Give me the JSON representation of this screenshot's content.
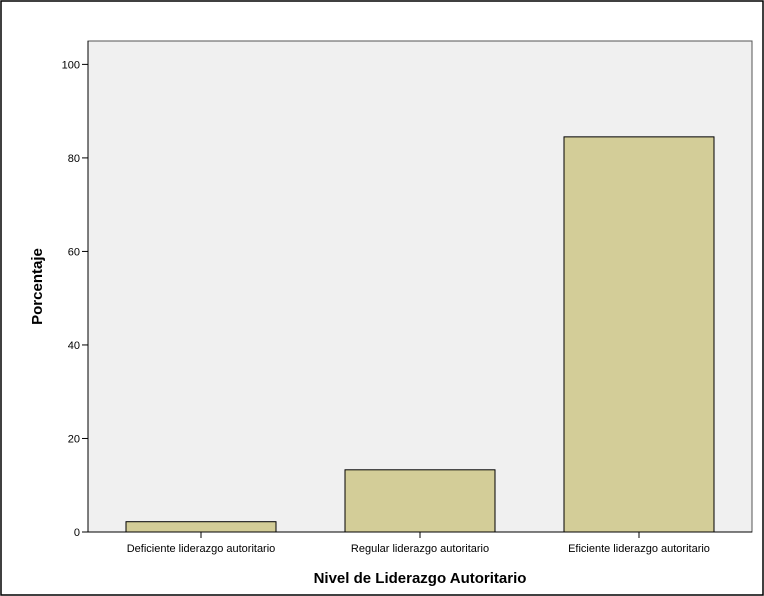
{
  "chart_data": {
    "type": "bar",
    "title": "",
    "xlabel": "Nivel de Liderazgo Autoritario",
    "ylabel": "Porcentaje",
    "categories": [
      "Deficiente liderazgo autoritario",
      "Regular liderazgo autoritario",
      "Eficiente liderazgo autoritario"
    ],
    "values": [
      2.2,
      13.3,
      84.5
    ],
    "ylim": [
      0,
      105
    ],
    "yticks": [
      0,
      20,
      40,
      60,
      80,
      100
    ],
    "ytick_labels": [
      "0",
      "20",
      "40",
      "60",
      "80",
      "100"
    ],
    "grid": false,
    "legend": "none",
    "colors": {
      "bar_fill": "#d3cd98",
      "bar_stroke": "#000000",
      "plot_background": "#f0f0f0",
      "axis": "#000000"
    }
  }
}
